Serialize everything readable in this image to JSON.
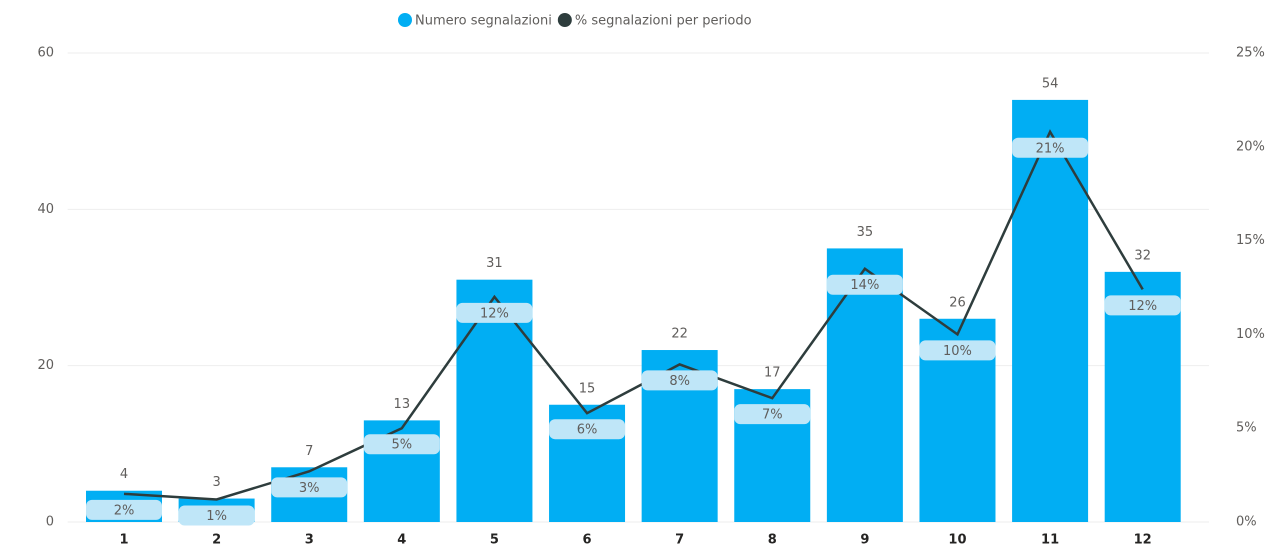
{
  "chart_data": {
    "type": "bar_line",
    "categories": [
      "1",
      "2",
      "3",
      "4",
      "5",
      "6",
      "7",
      "8",
      "9",
      "10",
      "11",
      "12"
    ],
    "series": [
      {
        "name": "Numero segnalazioni",
        "color": "#01aef3",
        "type": "bar",
        "axis": "y",
        "values": [
          4,
          3,
          7,
          13,
          31,
          15,
          22,
          17,
          35,
          26,
          54,
          32
        ]
      },
      {
        "name": "% segnalazioni per periodo",
        "color": "#2e3d3d",
        "type": "line",
        "axis": "y2",
        "values": [
          1.5,
          1.2,
          2.7,
          5.0,
          12.0,
          5.8,
          8.4,
          6.6,
          13.5,
          10.0,
          20.8,
          12.4
        ],
        "value_labels": [
          "2%",
          "1%",
          "3%",
          "5%",
          "12%",
          "6%",
          "8%",
          "7%",
          "14%",
          "10%",
          "21%",
          "12%"
        ]
      }
    ],
    "ylim": [
      0,
      60
    ],
    "yticks": [
      0,
      20,
      40,
      60
    ],
    "y2lim": [
      0,
      25
    ],
    "y2ticks": [
      {
        "value": 0,
        "label": "0%"
      },
      {
        "value": 5,
        "label": "5%"
      },
      {
        "value": 10,
        "label": "10%"
      },
      {
        "value": 15,
        "label": "15%"
      },
      {
        "value": 20,
        "label": "20%"
      },
      {
        "value": 25,
        "label": "25%"
      }
    ],
    "grid": true,
    "legend": "top"
  }
}
